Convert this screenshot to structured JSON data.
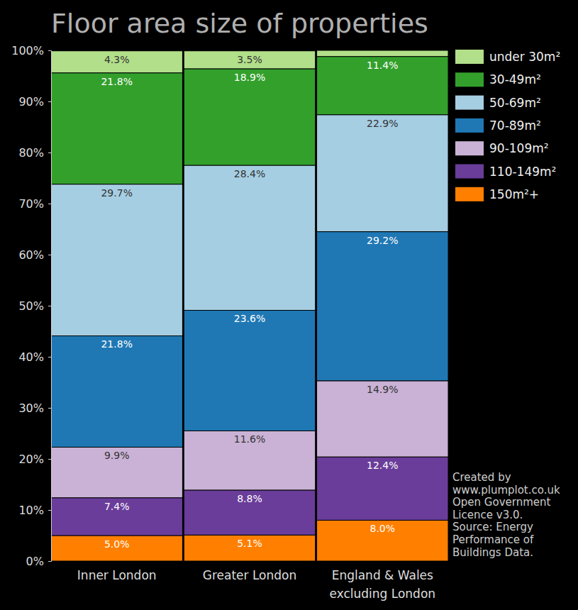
{
  "chart_data": {
    "type": "bar",
    "title": "Floor area size of properties",
    "stacked": true,
    "data_labels": true,
    "legend": "right",
    "categories": [
      "Inner London",
      "Greater London",
      "England & Wales excluding London"
    ],
    "ylim": [
      0,
      100
    ],
    "yticks": [
      {
        "value": 0,
        "label": "0%"
      },
      {
        "value": 10,
        "label": "10%"
      },
      {
        "value": 20,
        "label": "20%"
      },
      {
        "value": 30,
        "label": "30%"
      },
      {
        "value": 40,
        "label": "40%"
      },
      {
        "value": 50,
        "label": "50%"
      },
      {
        "value": 60,
        "label": "60%"
      },
      {
        "value": 70,
        "label": "70%"
      },
      {
        "value": 80,
        "label": "80%"
      },
      {
        "value": 90,
        "label": "90%"
      },
      {
        "value": 100,
        "label": "100%"
      }
    ],
    "series": [
      {
        "name": "under 30m²",
        "color": "#b2df8a",
        "values": [
          4.3,
          3.5,
          1.2
        ],
        "value_labels": [
          "4.3%",
          "3.5%",
          null
        ]
      },
      {
        "name": "30-49m²",
        "color": "#33a02c",
        "values": [
          21.8,
          18.9,
          11.4
        ],
        "value_labels": [
          "21.8%",
          "18.9%",
          "11.4%"
        ]
      },
      {
        "name": "50-69m²",
        "color": "#a6cee3",
        "values": [
          29.7,
          28.4,
          22.9
        ],
        "value_labels": [
          "29.7%",
          "28.4%",
          "22.9%"
        ]
      },
      {
        "name": "70-89m²",
        "color": "#1f78b4",
        "values": [
          21.8,
          23.6,
          29.2
        ],
        "value_labels": [
          "21.8%",
          "23.6%",
          "29.2%"
        ]
      },
      {
        "name": "90-109m²",
        "color": "#cab2d6",
        "values": [
          9.9,
          11.6,
          14.9
        ],
        "value_labels": [
          "9.9%",
          "11.6%",
          "14.9%"
        ]
      },
      {
        "name": "110-149m²",
        "color": "#6a3d9a",
        "values": [
          7.4,
          8.8,
          12.4
        ],
        "value_labels": [
          "7.4%",
          "8.8%",
          "12.4%"
        ]
      },
      {
        "name": "150m²+",
        "color": "#ff7f00",
        "values": [
          5.0,
          5.1,
          8.0
        ],
        "value_labels": [
          "5.0%",
          "5.1%",
          "8.0%"
        ]
      }
    ],
    "annotations": [
      "Created by",
      "www.plumplot.co.uk",
      "Open Government",
      "Licence v3.0.",
      "Source: Energy",
      "Performance of",
      "Buildings Data."
    ]
  }
}
